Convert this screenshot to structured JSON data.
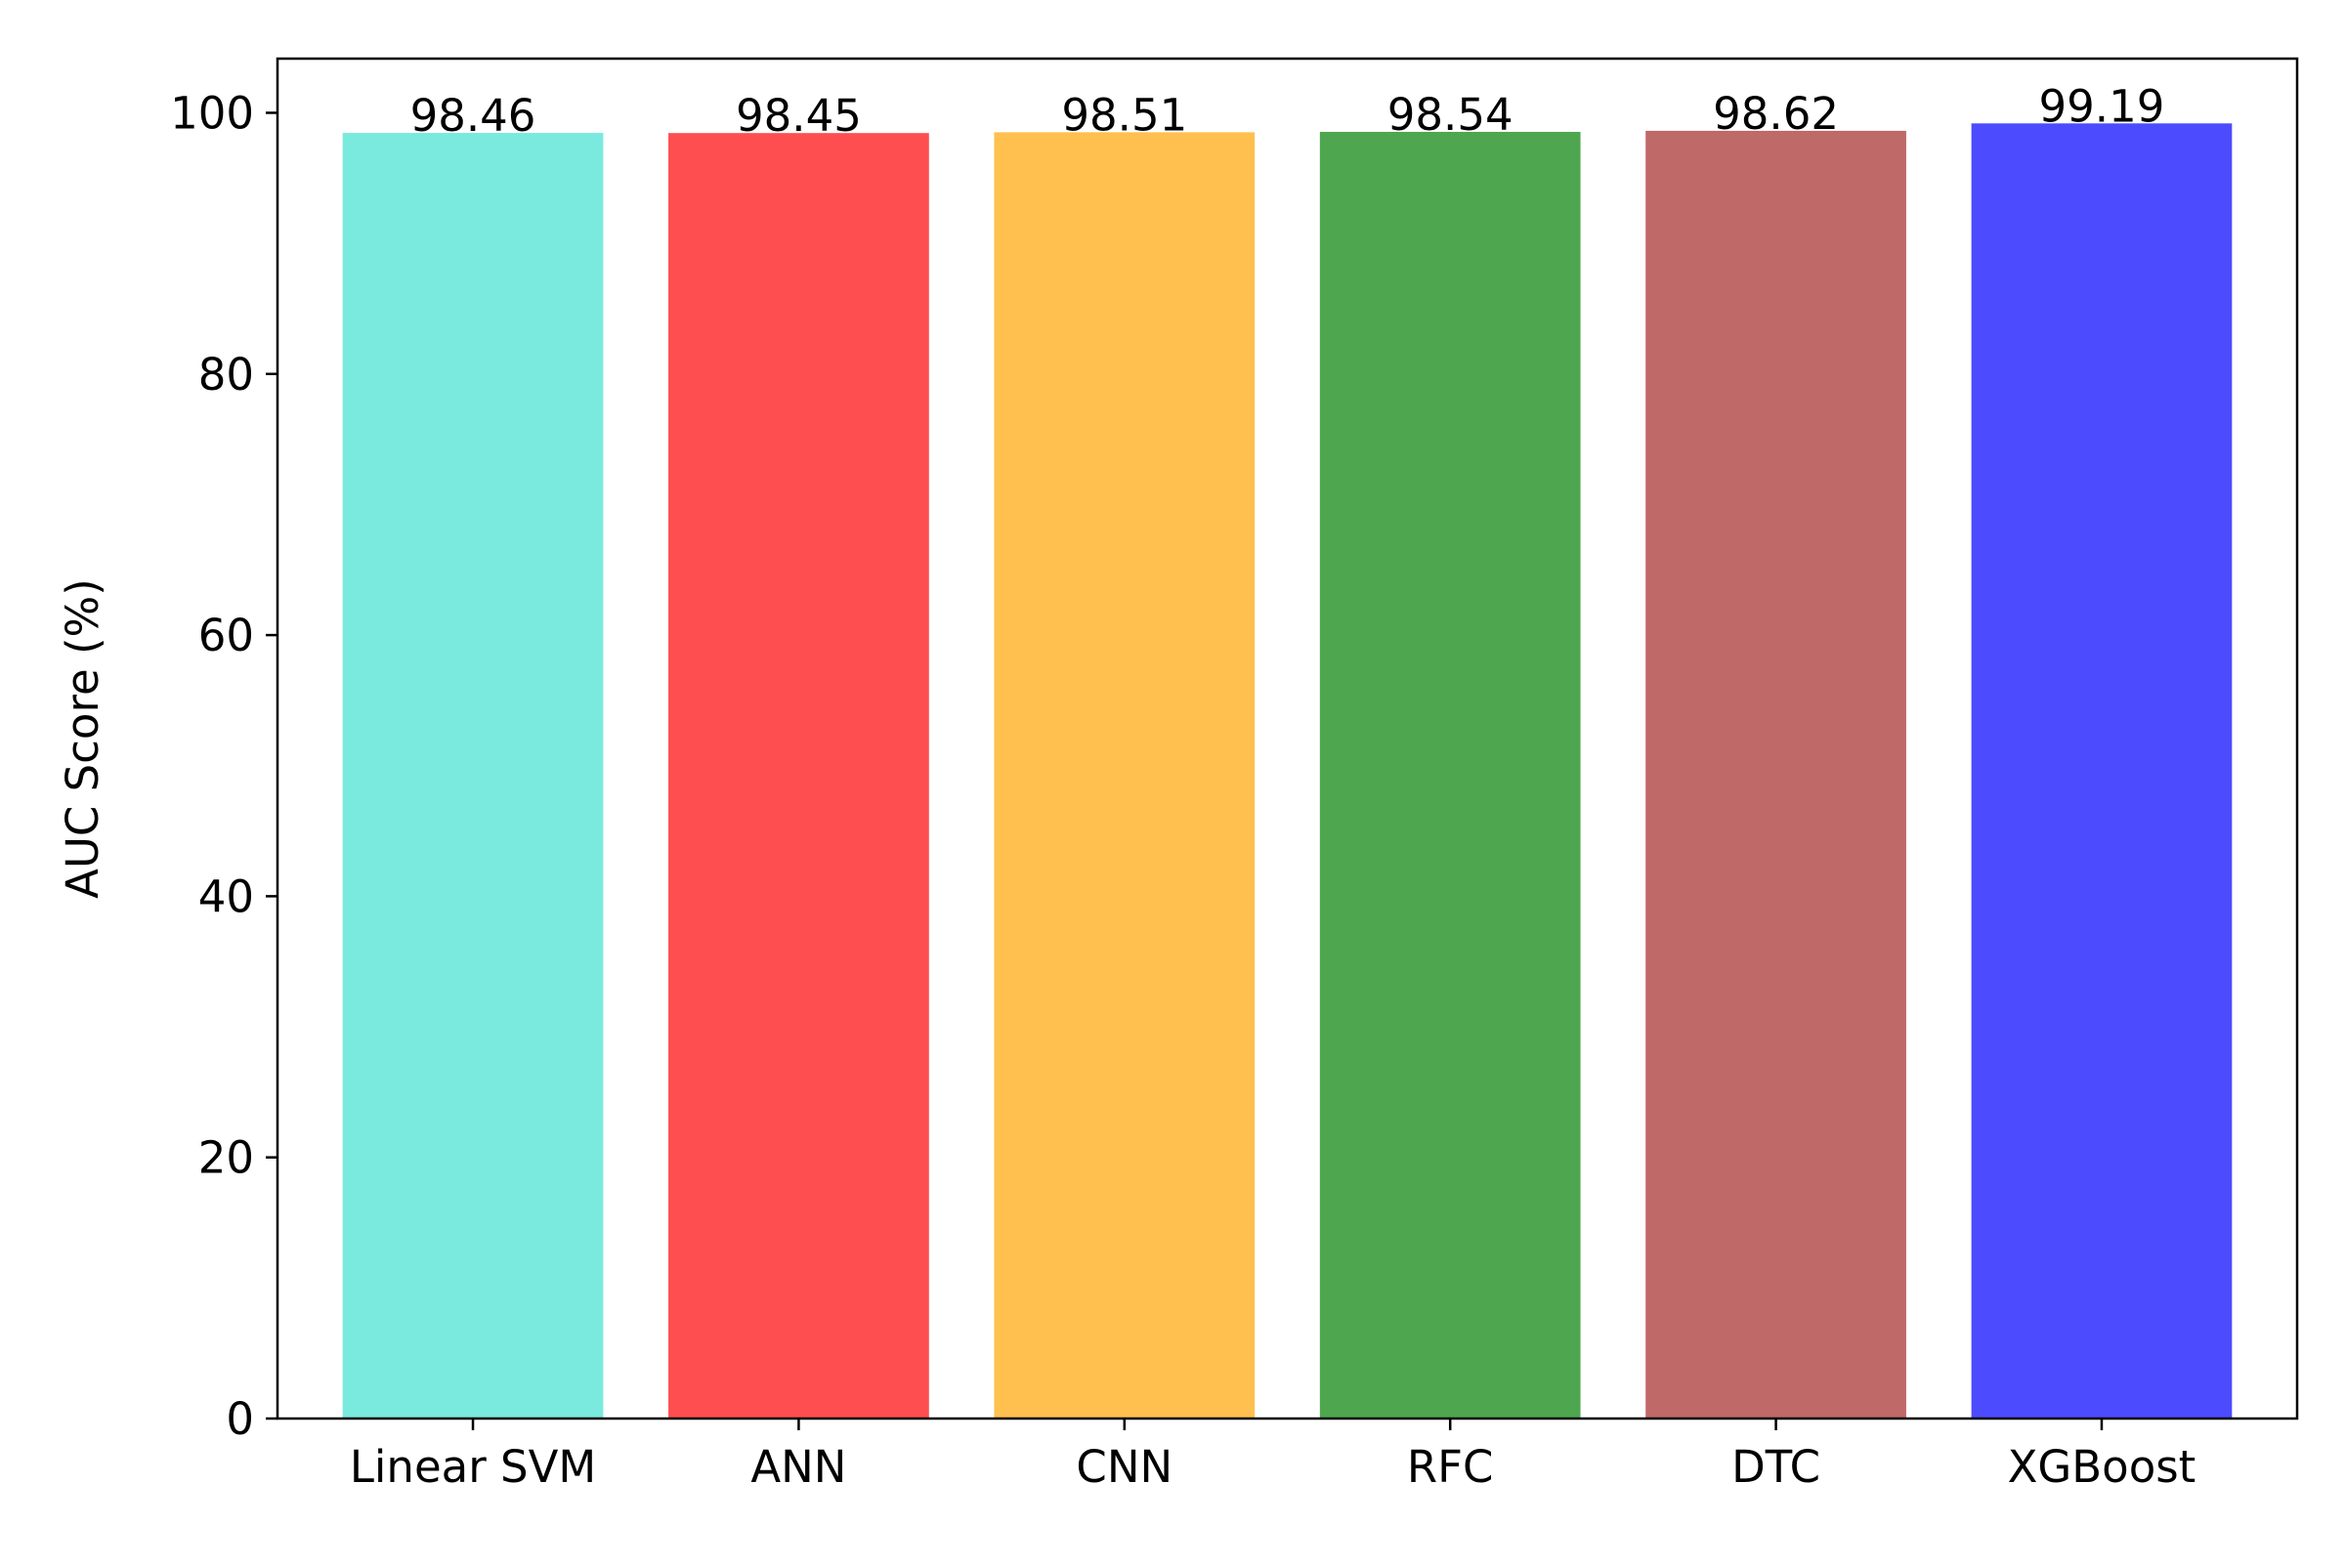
{
  "chart_data": {
    "type": "bar",
    "title": "",
    "xlabel": "",
    "ylabel": "AUC Score (%)",
    "categories": [
      "Linear SVM",
      "ANN",
      "CNN",
      "RFC",
      "DTC",
      "XGBoost"
    ],
    "values": [
      98.46,
      98.45,
      98.51,
      98.54,
      98.62,
      99.19
    ],
    "value_labels": [
      "98.46",
      "98.45",
      "98.51",
      "98.54",
      "98.62",
      "99.19"
    ],
    "colors": [
      "#7ae9de",
      "#fe4e4f",
      "#ffc04f",
      "#4ea74e",
      "#bf6968",
      "#4c4cfe"
    ],
    "ylim": [
      0,
      104.15
    ],
    "yticks": [
      0,
      20,
      40,
      60,
      80,
      100
    ],
    "ytick_labels": [
      "0",
      "20",
      "40",
      "60",
      "80",
      "100"
    ],
    "grid": false,
    "legend": false
  }
}
